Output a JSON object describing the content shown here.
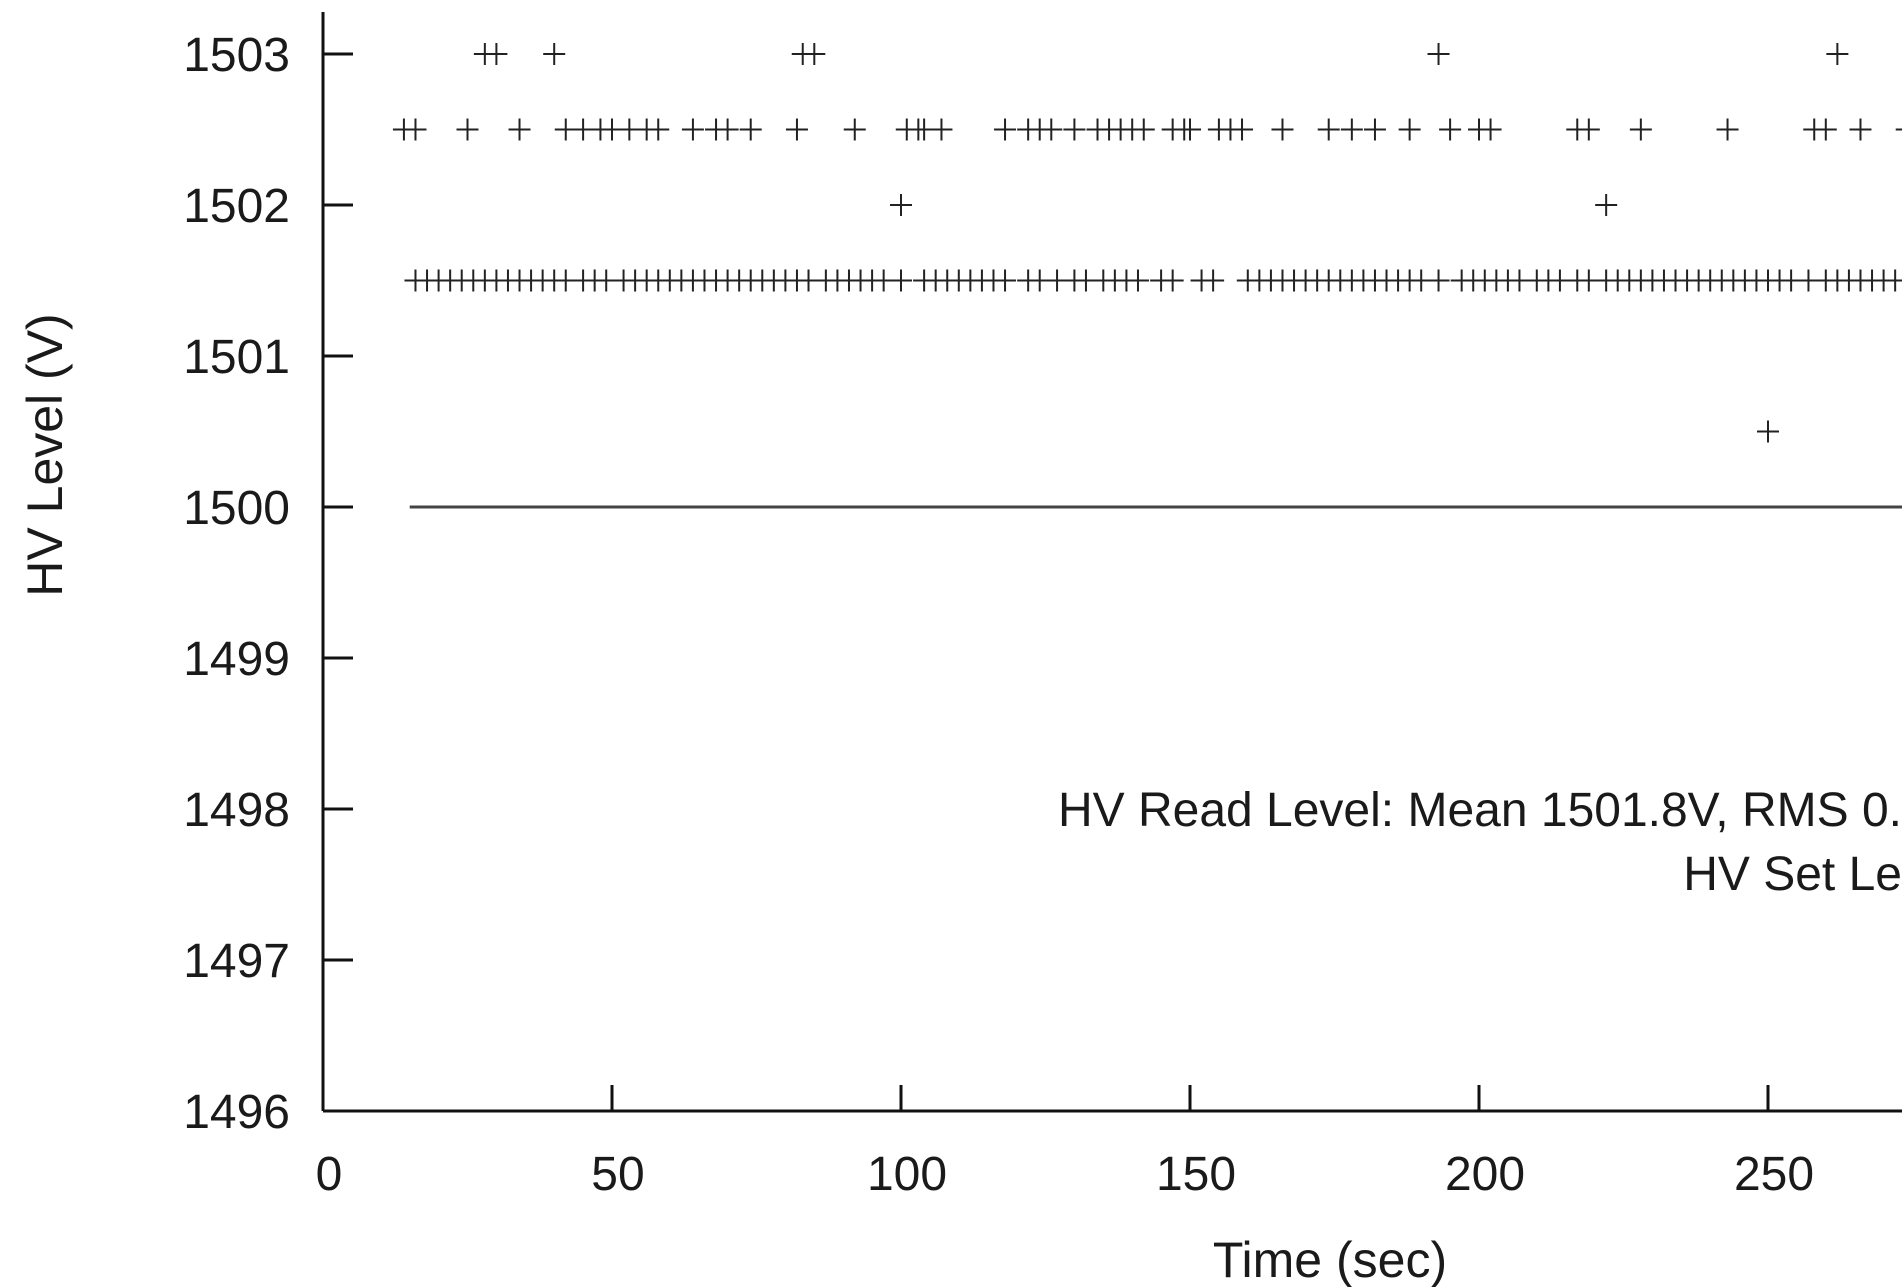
{
  "chart_data": {
    "type": "scatter",
    "xlabel": "Time (sec)",
    "ylabel": "HV Level (V)",
    "xlim": [
      0,
      275
    ],
    "ylim": [
      1496,
      1503.2
    ],
    "x_ticks": [
      0,
      50,
      100,
      150,
      200,
      250
    ],
    "y_ticks": [
      1496,
      1497,
      1498,
      1499,
      1500,
      1501,
      1502,
      1503
    ],
    "grid": false,
    "annotation_lines": [
      "HV Read Level: Mean 1501.8V, RMS 0.",
      "HV Set Le"
    ],
    "series": [
      {
        "type": "scatter",
        "marker": "+",
        "points": [
          {
            "x": 28,
            "y": 1503
          },
          {
            "x": 30,
            "y": 1503
          },
          {
            "x": 40,
            "y": 1503
          },
          {
            "x": 83,
            "y": 1503
          },
          {
            "x": 85,
            "y": 1503
          },
          {
            "x": 193,
            "y": 1503
          },
          {
            "x": 262,
            "y": 1503
          },
          {
            "x": 14,
            "y": 1502.5
          },
          {
            "x": 16,
            "y": 1502.5
          },
          {
            "x": 25,
            "y": 1502.5
          },
          {
            "x": 34,
            "y": 1502.5
          },
          {
            "x": 42,
            "y": 1502.5
          },
          {
            "x": 45,
            "y": 1502.5
          },
          {
            "x": 48,
            "y": 1502.5
          },
          {
            "x": 50,
            "y": 1502.5
          },
          {
            "x": 53,
            "y": 1502.5
          },
          {
            "x": 56,
            "y": 1502.5
          },
          {
            "x": 58,
            "y": 1502.5
          },
          {
            "x": 64,
            "y": 1502.5
          },
          {
            "x": 68,
            "y": 1502.5
          },
          {
            "x": 70,
            "y": 1502.5
          },
          {
            "x": 74,
            "y": 1502.5
          },
          {
            "x": 82,
            "y": 1502.5
          },
          {
            "x": 92,
            "y": 1502.5
          },
          {
            "x": 101,
            "y": 1502.5
          },
          {
            "x": 103,
            "y": 1502.5
          },
          {
            "x": 104,
            "y": 1502.5
          },
          {
            "x": 107,
            "y": 1502.5
          },
          {
            "x": 118,
            "y": 1502.5
          },
          {
            "x": 122,
            "y": 1502.5
          },
          {
            "x": 124,
            "y": 1502.5
          },
          {
            "x": 126,
            "y": 1502.5
          },
          {
            "x": 130,
            "y": 1502.5
          },
          {
            "x": 134,
            "y": 1502.5
          },
          {
            "x": 136,
            "y": 1502.5
          },
          {
            "x": 138,
            "y": 1502.5
          },
          {
            "x": 140,
            "y": 1502.5
          },
          {
            "x": 142,
            "y": 1502.5
          },
          {
            "x": 147,
            "y": 1502.5
          },
          {
            "x": 149,
            "y": 1502.5
          },
          {
            "x": 150,
            "y": 1502.5
          },
          {
            "x": 155,
            "y": 1502.5
          },
          {
            "x": 157,
            "y": 1502.5
          },
          {
            "x": 159,
            "y": 1502.5
          },
          {
            "x": 166,
            "y": 1502.5
          },
          {
            "x": 174,
            "y": 1502.5
          },
          {
            "x": 178,
            "y": 1502.5
          },
          {
            "x": 182,
            "y": 1502.5
          },
          {
            "x": 188,
            "y": 1502.5
          },
          {
            "x": 195,
            "y": 1502.5
          },
          {
            "x": 200,
            "y": 1502.5
          },
          {
            "x": 202,
            "y": 1502.5
          },
          {
            "x": 217,
            "y": 1502.5
          },
          {
            "x": 219,
            "y": 1502.5
          },
          {
            "x": 228,
            "y": 1502.5
          },
          {
            "x": 243,
            "y": 1502.5
          },
          {
            "x": 258,
            "y": 1502.5
          },
          {
            "x": 260,
            "y": 1502.5
          },
          {
            "x": 266,
            "y": 1502.5
          },
          {
            "x": 274,
            "y": 1502.5
          },
          {
            "x": 100,
            "y": 1502
          },
          {
            "x": 222,
            "y": 1502
          },
          {
            "x": 16,
            "y": 1501.5
          },
          {
            "x": 18,
            "y": 1501.5
          },
          {
            "x": 20,
            "y": 1501.5
          },
          {
            "x": 22,
            "y": 1501.5
          },
          {
            "x": 24,
            "y": 1501.5
          },
          {
            "x": 26,
            "y": 1501.5
          },
          {
            "x": 28,
            "y": 1501.5
          },
          {
            "x": 30,
            "y": 1501.5
          },
          {
            "x": 32,
            "y": 1501.5
          },
          {
            "x": 34,
            "y": 1501.5
          },
          {
            "x": 36,
            "y": 1501.5
          },
          {
            "x": 38,
            "y": 1501.5
          },
          {
            "x": 40,
            "y": 1501.5
          },
          {
            "x": 42,
            "y": 1501.5
          },
          {
            "x": 45,
            "y": 1501.5
          },
          {
            "x": 47,
            "y": 1501.5
          },
          {
            "x": 49,
            "y": 1501.5
          },
          {
            "x": 52,
            "y": 1501.5
          },
          {
            "x": 54,
            "y": 1501.5
          },
          {
            "x": 56,
            "y": 1501.5
          },
          {
            "x": 58,
            "y": 1501.5
          },
          {
            "x": 60,
            "y": 1501.5
          },
          {
            "x": 62,
            "y": 1501.5
          },
          {
            "x": 64,
            "y": 1501.5
          },
          {
            "x": 66,
            "y": 1501.5
          },
          {
            "x": 68,
            "y": 1501.5
          },
          {
            "x": 70,
            "y": 1501.5
          },
          {
            "x": 72,
            "y": 1501.5
          },
          {
            "x": 74,
            "y": 1501.5
          },
          {
            "x": 76,
            "y": 1501.5
          },
          {
            "x": 78,
            "y": 1501.5
          },
          {
            "x": 80,
            "y": 1501.5
          },
          {
            "x": 82,
            "y": 1501.5
          },
          {
            "x": 84,
            "y": 1501.5
          },
          {
            "x": 87,
            "y": 1501.5
          },
          {
            "x": 89,
            "y": 1501.5
          },
          {
            "x": 91,
            "y": 1501.5
          },
          {
            "x": 93,
            "y": 1501.5
          },
          {
            "x": 95,
            "y": 1501.5
          },
          {
            "x": 97,
            "y": 1501.5
          },
          {
            "x": 100,
            "y": 1501.5
          },
          {
            "x": 104,
            "y": 1501.5
          },
          {
            "x": 106,
            "y": 1501.5
          },
          {
            "x": 108,
            "y": 1501.5
          },
          {
            "x": 110,
            "y": 1501.5
          },
          {
            "x": 112,
            "y": 1501.5
          },
          {
            "x": 114,
            "y": 1501.5
          },
          {
            "x": 116,
            "y": 1501.5
          },
          {
            "x": 118,
            "y": 1501.5
          },
          {
            "x": 122,
            "y": 1501.5
          },
          {
            "x": 124,
            "y": 1501.5
          },
          {
            "x": 127,
            "y": 1501.5
          },
          {
            "x": 130,
            "y": 1501.5
          },
          {
            "x": 132,
            "y": 1501.5
          },
          {
            "x": 135,
            "y": 1501.5
          },
          {
            "x": 137,
            "y": 1501.5
          },
          {
            "x": 139,
            "y": 1501.5
          },
          {
            "x": 141,
            "y": 1501.5
          },
          {
            "x": 145,
            "y": 1501.5
          },
          {
            "x": 147,
            "y": 1501.5
          },
          {
            "x": 152,
            "y": 1501.5
          },
          {
            "x": 154,
            "y": 1501.5
          },
          {
            "x": 160,
            "y": 1501.5
          },
          {
            "x": 162,
            "y": 1501.5
          },
          {
            "x": 164,
            "y": 1501.5
          },
          {
            "x": 166,
            "y": 1501.5
          },
          {
            "x": 168,
            "y": 1501.5
          },
          {
            "x": 170,
            "y": 1501.5
          },
          {
            "x": 172,
            "y": 1501.5
          },
          {
            "x": 174,
            "y": 1501.5
          },
          {
            "x": 176,
            "y": 1501.5
          },
          {
            "x": 178,
            "y": 1501.5
          },
          {
            "x": 180,
            "y": 1501.5
          },
          {
            "x": 182,
            "y": 1501.5
          },
          {
            "x": 184,
            "y": 1501.5
          },
          {
            "x": 186,
            "y": 1501.5
          },
          {
            "x": 188,
            "y": 1501.5
          },
          {
            "x": 190,
            "y": 1501.5
          },
          {
            "x": 193,
            "y": 1501.5
          },
          {
            "x": 197,
            "y": 1501.5
          },
          {
            "x": 199,
            "y": 1501.5
          },
          {
            "x": 201,
            "y": 1501.5
          },
          {
            "x": 203,
            "y": 1501.5
          },
          {
            "x": 205,
            "y": 1501.5
          },
          {
            "x": 207,
            "y": 1501.5
          },
          {
            "x": 210,
            "y": 1501.5
          },
          {
            "x": 212,
            "y": 1501.5
          },
          {
            "x": 214,
            "y": 1501.5
          },
          {
            "x": 217,
            "y": 1501.5
          },
          {
            "x": 219,
            "y": 1501.5
          },
          {
            "x": 222,
            "y": 1501.5
          },
          {
            "x": 224,
            "y": 1501.5
          },
          {
            "x": 226,
            "y": 1501.5
          },
          {
            "x": 228,
            "y": 1501.5
          },
          {
            "x": 230,
            "y": 1501.5
          },
          {
            "x": 232,
            "y": 1501.5
          },
          {
            "x": 234,
            "y": 1501.5
          },
          {
            "x": 236,
            "y": 1501.5
          },
          {
            "x": 238,
            "y": 1501.5
          },
          {
            "x": 240,
            "y": 1501.5
          },
          {
            "x": 242,
            "y": 1501.5
          },
          {
            "x": 244,
            "y": 1501.5
          },
          {
            "x": 246,
            "y": 1501.5
          },
          {
            "x": 248,
            "y": 1501.5
          },
          {
            "x": 250,
            "y": 1501.5
          },
          {
            "x": 252,
            "y": 1501.5
          },
          {
            "x": 254,
            "y": 1501.5
          },
          {
            "x": 257,
            "y": 1501.5
          },
          {
            "x": 260,
            "y": 1501.5
          },
          {
            "x": 262,
            "y": 1501.5
          },
          {
            "x": 264,
            "y": 1501.5
          },
          {
            "x": 266,
            "y": 1501.5
          },
          {
            "x": 268,
            "y": 1501.5
          },
          {
            "x": 270,
            "y": 1501.5
          },
          {
            "x": 272,
            "y": 1501.5
          },
          {
            "x": 274,
            "y": 1501.5
          },
          {
            "x": 250,
            "y": 1500.5
          }
        ]
      },
      {
        "type": "line",
        "x": [
          15,
          275
        ],
        "y": [
          1500,
          1500
        ]
      }
    ]
  }
}
